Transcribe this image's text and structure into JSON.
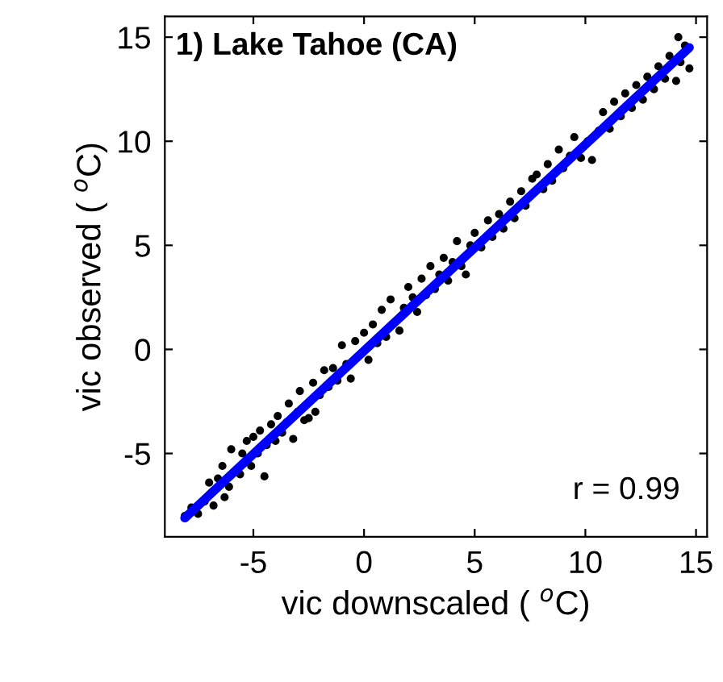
{
  "chart_data": {
    "type": "scatter",
    "title": "1) Lake Tahoe (CA)",
    "xlabel": "vic downscaled ( $^{o}$C)",
    "ylabel": "vic observed ( $^{o}$C)",
    "annotations": [
      "r = 0.99"
    ],
    "xlim": [
      -9,
      15.5
    ],
    "ylim": [
      -9,
      16
    ],
    "xticks": [
      {
        "value": -5,
        "label": "-5"
      },
      0,
      5,
      10,
      15
    ],
    "yticks": [
      {
        "value": -5,
        "label": "-5"
      },
      0,
      5,
      10,
      15
    ],
    "grid": false,
    "legend": false,
    "series": [
      {
        "marker": "circle",
        "color": "#000000",
        "x": [
          -8.1,
          -7.8,
          -7.5,
          -7.2,
          -7.0,
          -6.8,
          -6.6,
          -6.4,
          -6.3,
          -6.1,
          -6.0,
          -5.6,
          -5.5,
          -5.3,
          -5.1,
          -5.0,
          -4.8,
          -4.7,
          -4.5,
          -4.4,
          -4.2,
          -4.0,
          -3.9,
          -3.7,
          -3.5,
          -3.4,
          -3.2,
          -3.0,
          -2.9,
          -2.7,
          -2.5,
          -2.3,
          -2.2,
          -2.0,
          -1.8,
          -1.6,
          -1.4,
          -1.2,
          -1.0,
          -0.8,
          -0.6,
          -0.4,
          0.0,
          0.2,
          0.4,
          0.6,
          0.8,
          1.0,
          1.2,
          1.6,
          1.8,
          2.0,
          2.2,
          2.4,
          2.6,
          2.8,
          3.0,
          3.2,
          3.4,
          3.6,
          3.8,
          4.0,
          4.2,
          4.4,
          4.6,
          4.8,
          5.0,
          5.3,
          5.6,
          5.8,
          6.1,
          6.3,
          6.6,
          6.8,
          7.1,
          7.3,
          7.6,
          7.8,
          8.1,
          8.3,
          8.5,
          8.8,
          9.0,
          9.3,
          9.5,
          9.8,
          10.1,
          10.3,
          10.6,
          10.8,
          11.1,
          11.3,
          11.6,
          11.8,
          12.1,
          12.3,
          12.6,
          12.8,
          13.1,
          13.3,
          13.6,
          13.8,
          14.1,
          14.3,
          14.5,
          14.2,
          14.7
        ],
        "values": [
          -8.0,
          -7.6,
          -7.9,
          -7.3,
          -6.4,
          -7.5,
          -6.2,
          -5.6,
          -7.1,
          -6.6,
          -4.8,
          -6.0,
          -5.0,
          -4.4,
          -5.6,
          -4.2,
          -5.0,
          -3.9,
          -6.1,
          -4.6,
          -3.6,
          -4.4,
          -3.2,
          -4.0,
          -3.5,
          -2.6,
          -4.3,
          -3.0,
          -2.0,
          -3.4,
          -3.3,
          -1.6,
          -3.0,
          -2.2,
          -1.0,
          -1.8,
          -0.9,
          -1.5,
          0.2,
          -0.7,
          -1.4,
          0.4,
          0.8,
          -0.5,
          1.2,
          0.3,
          1.9,
          0.6,
          2.4,
          0.9,
          2.0,
          3.0,
          2.5,
          1.8,
          3.4,
          2.6,
          4.0,
          2.9,
          3.6,
          4.4,
          3.3,
          4.2,
          5.2,
          4.0,
          3.6,
          5.0,
          5.6,
          4.9,
          6.2,
          5.4,
          6.5,
          5.8,
          7.1,
          6.3,
          7.6,
          6.9,
          8.2,
          8.4,
          7.7,
          8.9,
          8.1,
          9.6,
          8.7,
          9.3,
          10.2,
          9.2,
          10.0,
          9.1,
          10.5,
          11.4,
          10.6,
          11.9,
          11.2,
          12.3,
          11.6,
          12.7,
          12.0,
          13.1,
          12.5,
          13.6,
          13.0,
          14.1,
          12.9,
          13.8,
          14.6,
          15.0,
          13.5
        ]
      },
      {
        "type": "line",
        "marker": "none",
        "color": "#0000ff",
        "x": [
          -8.1,
          14.7
        ],
        "values": [
          -8.1,
          14.5
        ]
      }
    ]
  }
}
